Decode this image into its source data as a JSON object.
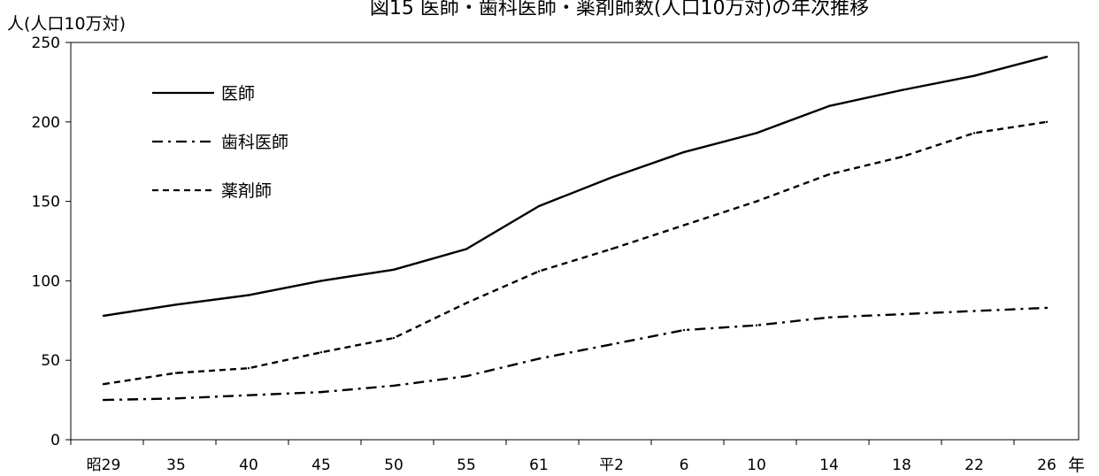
{
  "chart_data": {
    "type": "line",
    "title": "図15 医師・歯科医師・薬剤師数(人口10万対)の年次推移",
    "ylabel": "人(人口10万対)",
    "xlabel": "年",
    "ylim": [
      0,
      250
    ],
    "yticks": [
      0,
      50,
      100,
      150,
      200,
      250
    ],
    "categories": [
      "昭29",
      "35",
      "40",
      "45",
      "50",
      "55",
      "61",
      "平2",
      "6",
      "10",
      "14",
      "18",
      "22",
      "26"
    ],
    "grid": false,
    "legend_position": "top-left",
    "series": [
      {
        "name": "医師",
        "style": "solid",
        "values": [
          78,
          85,
          91,
          100,
          107,
          120,
          147,
          165,
          181,
          193,
          210,
          220,
          229,
          241
        ]
      },
      {
        "name": "歯科医師",
        "style": "dash-dot",
        "values": [
          25,
          26,
          28,
          30,
          34,
          40,
          51,
          60,
          69,
          72,
          77,
          79,
          81,
          83
        ]
      },
      {
        "name": "薬剤師",
        "style": "dashed",
        "values": [
          35,
          42,
          45,
          55,
          64,
          86,
          106,
          120,
          135,
          150,
          167,
          178,
          193,
          200
        ]
      }
    ],
    "colors": {
      "line": "#000000",
      "axis": "#000000"
    }
  }
}
